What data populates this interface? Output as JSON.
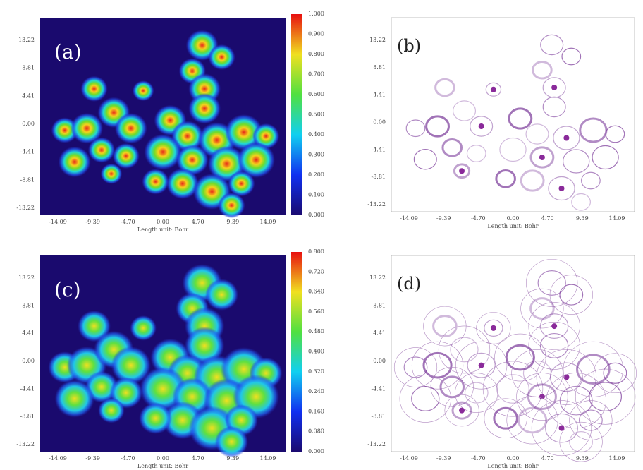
{
  "panels": [
    {
      "label": "(a)",
      "x_axis_label": "Length unit: Bohr",
      "xticks": [
        "-14.09",
        "-9.39",
        "-4.70",
        "0.00",
        "4.70",
        "9.39",
        "14.09"
      ],
      "yticks": [
        "13.22",
        "8.81",
        "4.41",
        "0.00",
        "-4.41",
        "-8.81",
        "-13.22"
      ],
      "colorbar_ticks": [
        "1.000",
        "0.900",
        "0.800",
        "0.700",
        "0.600",
        "0.500",
        "0.400",
        "0.300",
        "0.200",
        "0.100",
        "0.000"
      ]
    },
    {
      "label": "(b)",
      "x_axis_label": "Length unit: Bohr",
      "xticks": [
        "-14.09",
        "-9.39",
        "-4.70",
        "0.00",
        "4.70",
        "9.39",
        "14.09"
      ],
      "yticks": [
        "13.22",
        "8.81",
        "4.41",
        "0.00",
        "-4.41",
        "-8.81",
        "-13.22"
      ]
    },
    {
      "label": "(c)",
      "x_axis_label": "Length unit: Bohr",
      "xticks": [
        "-14.09",
        "-9.39",
        "-4.70",
        "0.00",
        "4.70",
        "9.39",
        "14.09"
      ],
      "yticks": [
        "13.22",
        "8.81",
        "4.41",
        "0.00",
        "-4.41",
        "-8.81",
        "-13.22"
      ],
      "colorbar_ticks": [
        "0.800",
        "0.720",
        "0.640",
        "0.560",
        "0.480",
        "0.400",
        "0.320",
        "0.240",
        "0.160",
        "0.080",
        "0.000"
      ]
    },
    {
      "label": "(d)",
      "x_axis_label": "Length unit: Bohr",
      "xticks": [
        "-14.09",
        "-9.39",
        "-4.70",
        "0.00",
        "4.70",
        "9.39",
        "14.09"
      ],
      "yticks": [
        "13.22",
        "8.81",
        "4.41",
        "0.00",
        "-4.41",
        "-8.81",
        "-13.22"
      ]
    }
  ]
}
